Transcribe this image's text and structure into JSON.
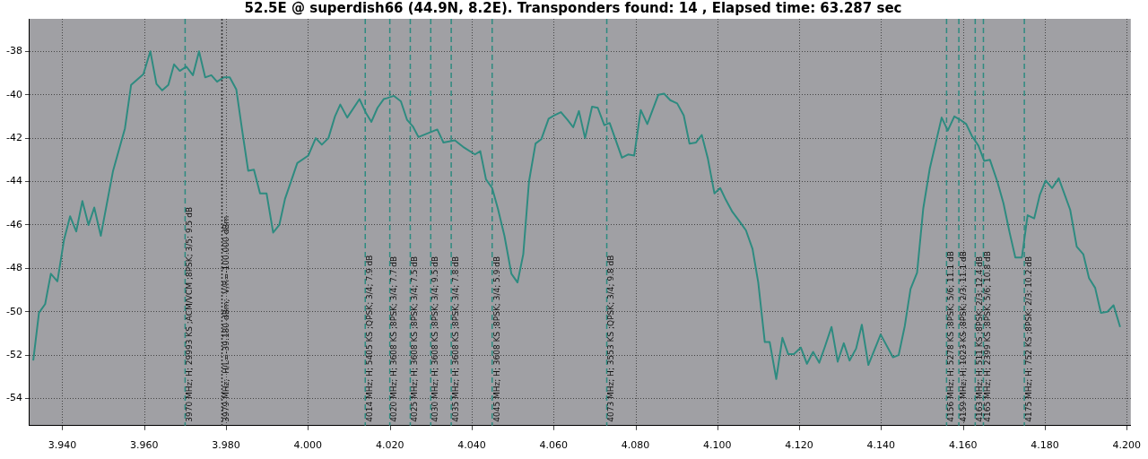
{
  "chart_data": {
    "type": "line",
    "title": "52.5E @ superdish66 (44.9N, 8.2E). Transponders found: 14 , Elapsed time: 63.287 sec",
    "x": [
      3.9329,
      3.9343,
      3.9358,
      3.9372,
      3.9388,
      3.9404,
      3.9419,
      3.9434,
      3.9449,
      3.9464,
      3.9478,
      3.9494,
      3.9524,
      3.9553,
      3.9568,
      3.9598,
      3.9615,
      3.963,
      3.9644,
      3.9659,
      3.9673,
      3.9687,
      3.9703,
      3.9719,
      3.9734,
      3.9749,
      3.9764,
      3.9778,
      3.9794,
      3.9809,
      3.9825,
      3.9839,
      3.9854,
      3.9868,
      3.9883,
      3.9899,
      3.9915,
      3.993,
      3.9944,
      3.9974,
      4.0001,
      4.0019,
      4.0034,
      4.005,
      4.0066,
      4.0079,
      4.0096,
      4.0126,
      4.0142,
      4.0155,
      4.017,
      4.0185,
      4.0194,
      4.021,
      4.0227,
      4.0242,
      4.0256,
      4.027,
      4.0316,
      4.0331,
      4.0359,
      4.0379,
      4.0408,
      4.0421,
      4.0435,
      4.045,
      4.0464,
      4.048,
      4.0497,
      4.0512,
      4.0526,
      4.054,
      4.0556,
      4.057,
      4.0588,
      4.0602,
      4.0618,
      4.0634,
      4.0648,
      4.0662,
      4.0677,
      4.0694,
      4.0708,
      4.0724,
      4.0737,
      4.0767,
      4.0782,
      4.0797,
      4.0813,
      4.0829,
      4.0856,
      4.087,
      4.0885,
      4.0902,
      4.0918,
      4.0932,
      4.0948,
      4.0962,
      4.0977,
      4.0993,
      4.1007,
      4.1021,
      4.1037,
      4.1053,
      4.107,
      4.1086,
      4.11,
      4.1116,
      4.1128,
      4.1144,
      4.1159,
      4.1173,
      4.1187,
      4.1204,
      4.1219,
      4.1234,
      4.1249,
      4.1263,
      4.1279,
      4.1294,
      4.1309,
      4.1323,
      4.1339,
      4.1353,
      4.1369,
      4.1399,
      4.1429,
      4.1443,
      4.1458,
      4.1472,
      4.1488,
      4.1503,
      4.1519,
      4.1548,
      4.1563,
      4.1579,
      4.1593,
      4.1608,
      4.1622,
      4.1638,
      4.1652,
      4.1666,
      4.1684,
      4.1699,
      4.1714,
      4.1728,
      4.1744,
      4.1758,
      4.1774,
      4.1788,
      4.1802,
      4.1818,
      4.1834,
      4.1862,
      4.1878,
      4.1894,
      4.1908,
      4.1923,
      4.1937,
      4.1953,
      4.1968,
      4.1984
    ],
    "values": [
      -52.25,
      -50.05,
      -49.65,
      -48.25,
      -48.6,
      -46.7,
      -45.6,
      -46.3,
      -44.9,
      -46.0,
      -45.2,
      -46.5,
      -43.5,
      -41.55,
      -39.55,
      -39.05,
      -38.0,
      -39.5,
      -39.8,
      -39.55,
      -38.6,
      -38.9,
      -38.7,
      -39.1,
      -38.0,
      -39.2,
      -39.1,
      -39.4,
      -39.2,
      -39.2,
      -39.75,
      -41.6,
      -43.5,
      -43.45,
      -44.55,
      -44.55,
      -46.35,
      -46.0,
      -44.8,
      -43.15,
      -42.8,
      -42.0,
      -42.3,
      -42.0,
      -41.0,
      -40.45,
      -41.05,
      -40.2,
      -40.85,
      -41.25,
      -40.6,
      -40.2,
      -40.15,
      -40.05,
      -40.3,
      -41.15,
      -41.45,
      -41.95,
      -41.6,
      -42.2,
      -42.1,
      -42.4,
      -42.75,
      -42.6,
      -43.9,
      -44.3,
      -45.25,
      -46.5,
      -48.25,
      -48.65,
      -47.35,
      -44.0,
      -42.25,
      -42.05,
      -41.1,
      -40.95,
      -40.8,
      -41.15,
      -41.5,
      -40.75,
      -42.0,
      -40.55,
      -40.6,
      -41.4,
      -41.3,
      -42.9,
      -42.75,
      -42.8,
      -40.7,
      -41.35,
      -40.0,
      -39.95,
      -40.25,
      -40.4,
      -40.95,
      -42.25,
      -42.2,
      -41.85,
      -42.95,
      -44.55,
      -44.3,
      -44.85,
      -45.4,
      -45.8,
      -46.25,
      -47.1,
      -48.65,
      -51.4,
      -51.4,
      -53.1,
      -51.2,
      -51.95,
      -51.95,
      -51.65,
      -52.4,
      -51.85,
      -52.35,
      -51.6,
      -50.7,
      -52.3,
      -51.45,
      -52.25,
      -51.7,
      -50.6,
      -52.45,
      -51.05,
      -52.1,
      -52.0,
      -50.65,
      -48.95,
      -48.2,
      -45.25,
      -43.4,
      -41.05,
      -41.65,
      -41.0,
      -41.15,
      -41.35,
      -41.9,
      -42.35,
      -43.05,
      -43.0,
      -44.0,
      -45.0,
      -46.35,
      -47.5,
      -47.5,
      -45.55,
      -45.7,
      -44.6,
      -43.95,
      -44.3,
      -43.85,
      -45.3,
      -47.0,
      -47.35,
      -48.45,
      -48.9,
      -50.05,
      -50.0,
      -49.7,
      -50.7
    ],
    "color": "#2e8b80",
    "xlim": [
      3.932,
      4.201
    ],
    "ylim": [
      -55.25,
      -36.5
    ],
    "xticks": [
      {
        "value": 3.94,
        "label": "3.940"
      },
      {
        "value": 3.96,
        "label": "3.960"
      },
      {
        "value": 3.98,
        "label": "3.980"
      },
      {
        "value": 4.0,
        "label": "4.000"
      },
      {
        "value": 4.02,
        "label": "4.020"
      },
      {
        "value": 4.04,
        "label": "4.040"
      },
      {
        "value": 4.06,
        "label": "4.060"
      },
      {
        "value": 4.08,
        "label": "4.080"
      },
      {
        "value": 4.1,
        "label": "4.100"
      },
      {
        "value": 4.12,
        "label": "4.120"
      },
      {
        "value": 4.14,
        "label": "4.140"
      },
      {
        "value": 4.16,
        "label": "4.160"
      },
      {
        "value": 4.18,
        "label": "4.180"
      },
      {
        "value": 4.2,
        "label": "4.200"
      }
    ],
    "yticks": [
      -38,
      -40,
      -42,
      -44,
      -46,
      -48,
      -50,
      -52,
      -54
    ],
    "grid": true,
    "legend": false,
    "marker": "none",
    "line_style": "solid",
    "ref_lines": [
      {
        "axis": "x",
        "value": 3.97,
        "label": "3970 MHz; H; 29993 KS ;ACM/VCM ;8PSK; 3/5; 9.5 dB",
        "color": "#2e8b80",
        "line_style": "dashed"
      },
      {
        "axis": "x",
        "value": 3.979,
        "label": "3979 MHz;  H/L=-39.180 dBm;  V/R=-100.000 dBm",
        "color": "#333333",
        "line_style": "dotted"
      },
      {
        "axis": "x",
        "value": 4.014,
        "label": "4014 MHz; H; 5405 KS ;QPSK; 3/4; 7.9 dB",
        "color": "#2e8b80",
        "line_style": "dashed"
      },
      {
        "axis": "x",
        "value": 4.02,
        "label": "4020 MHz; H; 3608 KS ;8PSK; 3/4; 7.7 dB",
        "color": "#2e8b80",
        "line_style": "dashed"
      },
      {
        "axis": "x",
        "value": 4.025,
        "label": "4025 MHz; H; 3608 KS ;8PSK; 3/4; 7.5 dB",
        "color": "#2e8b80",
        "line_style": "dashed"
      },
      {
        "axis": "x",
        "value": 4.03,
        "label": "4030 MHz; H; 3608 KS ;8PSK; 3/4; 9.5 dB",
        "color": "#2e8b80",
        "line_style": "dashed"
      },
      {
        "axis": "x",
        "value": 4.035,
        "label": "4035 MHz; H; 3608 KS ;8PSK; 3/4; 7.8 dB",
        "color": "#2e8b80",
        "line_style": "dashed"
      },
      {
        "axis": "x",
        "value": 4.045,
        "label": "4045 MHz; H; 3608 KS ;8PSK; 3/4; 5.9 dB",
        "color": "#2e8b80",
        "line_style": "dashed"
      },
      {
        "axis": "x",
        "value": 4.073,
        "label": "4073 MHz; H; 3553 KS ;QPSK; 3/4; 9.8 dB",
        "color": "#2e8b80",
        "line_style": "dashed"
      },
      {
        "axis": "x",
        "value": 4.156,
        "label": "4156 MHz; H; 5278 KS ;8PSK; 5/6; 11.1 dB",
        "color": "#2e8b80",
        "line_style": "dashed"
      },
      {
        "axis": "x",
        "value": 4.159,
        "label": "4159 MHz; H; 1023 KS ;8PSK; 2/3; 11.1 dB",
        "color": "#2e8b80",
        "line_style": "dashed"
      },
      {
        "axis": "x",
        "value": 4.163,
        "label": "4163 MHz; H; 511 KS ;8PSK; 2/3; 12.4 dB",
        "color": "#2e8b80",
        "line_style": "dashed"
      },
      {
        "axis": "x",
        "value": 4.165,
        "label": "4165 MHz; H; 2399 KS ;8PSK; 5/6; 10.8 dB",
        "color": "#2e8b80",
        "line_style": "dashed"
      },
      {
        "axis": "x",
        "value": 4.175,
        "label": "4175 MHz; H; 752 KS ;8PSK; 2/3; 10.2 dB",
        "color": "#2e8b80",
        "line_style": "dashed"
      }
    ]
  }
}
